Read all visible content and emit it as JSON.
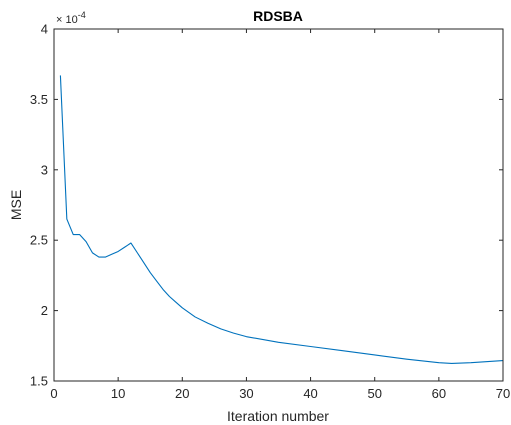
{
  "chart_data": {
    "type": "line",
    "title": "RDSBA",
    "xlabel": "Iteration number",
    "ylabel": "MSE",
    "y_exponent_label": "× 10",
    "y_exponent_power": "-4",
    "xlim": [
      0,
      70
    ],
    "ylim": [
      1.5,
      4
    ],
    "x_ticks": [
      0,
      10,
      20,
      30,
      40,
      50,
      60,
      70
    ],
    "x_tick_labels": [
      "0",
      "10",
      "20",
      "30",
      "40",
      "50",
      "60",
      "70"
    ],
    "y_ticks": [
      1.5,
      2,
      2.5,
      3,
      3.5,
      4
    ],
    "y_tick_labels": [
      "1.5",
      "2",
      "2.5",
      "3",
      "3.5",
      "4"
    ],
    "grid": false,
    "box": true,
    "series": [
      {
        "color": "#0072BD",
        "x": [
          1,
          2,
          3,
          4,
          5,
          6,
          7,
          8,
          9,
          10,
          11,
          12,
          13,
          14,
          15,
          16,
          17,
          18,
          19,
          20,
          22,
          24,
          26,
          28,
          30,
          35,
          40,
          45,
          50,
          55,
          60,
          62,
          65,
          70
        ],
        "y": [
          3.67,
          2.65,
          2.54,
          2.54,
          2.49,
          2.41,
          2.38,
          2.38,
          2.4,
          2.42,
          2.45,
          2.48,
          2.41,
          2.34,
          2.27,
          2.21,
          2.15,
          2.1,
          2.06,
          2.02,
          1.955,
          1.91,
          1.87,
          1.84,
          1.815,
          1.775,
          1.745,
          1.715,
          1.685,
          1.655,
          1.63,
          1.625,
          1.63,
          1.645
        ]
      }
    ]
  }
}
